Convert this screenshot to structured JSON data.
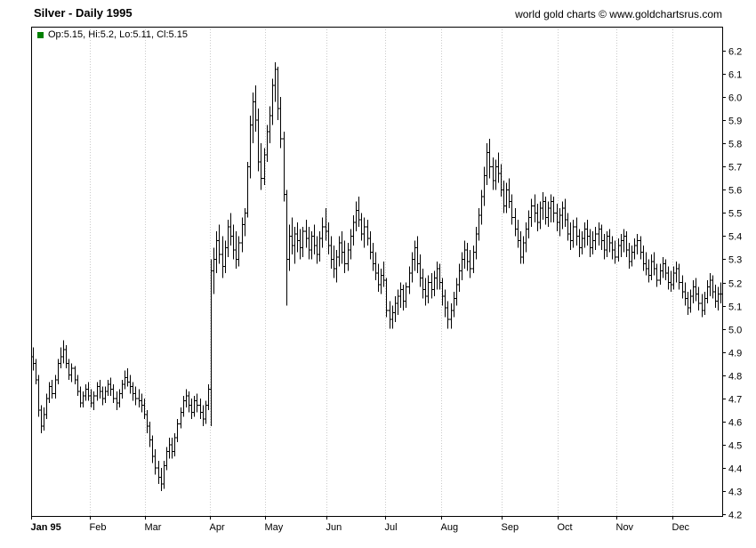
{
  "header": {
    "title": "Silver - Daily 1995",
    "attribution": "world gold charts © www.goldchartsrus.com"
  },
  "legend": {
    "label": "Op:5.15, Hi:5.2, Lo:5.11, Cl:5.15",
    "marker_color": "#008000"
  },
  "chart_data": {
    "type": "ohlc",
    "title": "Silver - Daily 1995",
    "series_name": "Silver daily price (USD/oz)",
    "xlabel": "",
    "ylabel": "",
    "grid": "vertical-dotted-month-lines",
    "legend_position": "top-left",
    "bar_color": "#000000",
    "grid_color": "#c9c9c9",
    "frame_color": "#000000",
    "last_bar": {
      "open": 5.15,
      "high": 5.2,
      "low": 5.11,
      "close": 5.15
    },
    "y_axis": {
      "min": 4.2,
      "max": 6.2,
      "tick_step": 0.1,
      "side": "right",
      "tick_labels": [
        "4.2",
        "4.3",
        "4.4",
        "4.5",
        "4.6",
        "4.7",
        "4.8",
        "4.9",
        "5.0",
        "5.1",
        "5.2",
        "5.3",
        "5.4",
        "5.5",
        "5.6",
        "5.7",
        "5.8",
        "5.9",
        "6.0",
        "6.1",
        "6.2"
      ]
    },
    "x_axis": {
      "months": [
        {
          "label": "Jan 95",
          "start": 0
        },
        {
          "label": "Feb",
          "start": 21
        },
        {
          "label": "Mar",
          "start": 41
        },
        {
          "label": "Apr",
          "start": 64
        },
        {
          "label": "May",
          "start": 84
        },
        {
          "label": "Jun",
          "start": 106
        },
        {
          "label": "Jul",
          "start": 127
        },
        {
          "label": "Aug",
          "start": 147
        },
        {
          "label": "Sep",
          "start": 169
        },
        {
          "label": "Oct",
          "start": 189
        },
        {
          "label": "Nov",
          "start": 210
        },
        {
          "label": "Dec",
          "start": 230
        }
      ]
    },
    "bars": [
      [
        4.88,
        4.92,
        4.82,
        4.85
      ],
      [
        4.85,
        4.87,
        4.76,
        4.78
      ],
      [
        4.78,
        4.8,
        4.62,
        4.65
      ],
      [
        4.65,
        4.67,
        4.55,
        4.58
      ],
      [
        4.58,
        4.66,
        4.56,
        4.63
      ],
      [
        4.63,
        4.72,
        4.61,
        4.7
      ],
      [
        4.7,
        4.77,
        4.68,
        4.75
      ],
      [
        4.75,
        4.78,
        4.7,
        4.72
      ],
      [
        4.72,
        4.8,
        4.7,
        4.78
      ],
      [
        4.78,
        4.87,
        4.76,
        4.85
      ],
      [
        4.85,
        4.92,
        4.83,
        4.88
      ],
      [
        4.88,
        4.95,
        4.85,
        4.91
      ],
      [
        4.91,
        4.93,
        4.83,
        4.85
      ],
      [
        4.85,
        4.87,
        4.78,
        4.8
      ],
      [
        4.8,
        4.85,
        4.77,
        4.83
      ],
      [
        4.83,
        4.84,
        4.76,
        4.78
      ],
      [
        4.78,
        4.8,
        4.71,
        4.73
      ],
      [
        4.73,
        4.75,
        4.66,
        4.68
      ],
      [
        4.68,
        4.73,
        4.66,
        4.71
      ],
      [
        4.71,
        4.76,
        4.69,
        4.74
      ],
      [
        4.74,
        4.77,
        4.69,
        4.71
      ],
      [
        4.71,
        4.74,
        4.66,
        4.68
      ],
      [
        4.68,
        4.73,
        4.65,
        4.71
      ],
      [
        4.71,
        4.77,
        4.69,
        4.75
      ],
      [
        4.75,
        4.78,
        4.7,
        4.73
      ],
      [
        4.73,
        4.75,
        4.67,
        4.7
      ],
      [
        4.7,
        4.75,
        4.68,
        4.73
      ],
      [
        4.73,
        4.78,
        4.71,
        4.76
      ],
      [
        4.76,
        4.79,
        4.71,
        4.74
      ],
      [
        4.74,
        4.76,
        4.68,
        4.7
      ],
      [
        4.7,
        4.73,
        4.65,
        4.68
      ],
      [
        4.68,
        4.74,
        4.66,
        4.72
      ],
      [
        4.72,
        4.78,
        4.7,
        4.76
      ],
      [
        4.76,
        4.82,
        4.74,
        4.79
      ],
      [
        4.79,
        4.83,
        4.75,
        4.77
      ],
      [
        4.77,
        4.8,
        4.72,
        4.75
      ],
      [
        4.75,
        4.77,
        4.69,
        4.72
      ],
      [
        4.72,
        4.75,
        4.67,
        4.7
      ],
      [
        4.7,
        4.74,
        4.66,
        4.69
      ],
      [
        4.69,
        4.72,
        4.64,
        4.67
      ],
      [
        4.67,
        4.7,
        4.61,
        4.63
      ],
      [
        4.63,
        4.65,
        4.55,
        4.58
      ],
      [
        4.58,
        4.6,
        4.49,
        4.52
      ],
      [
        4.52,
        4.54,
        4.42,
        4.45
      ],
      [
        4.45,
        4.48,
        4.37,
        4.4
      ],
      [
        4.4,
        4.43,
        4.33,
        4.36
      ],
      [
        4.36,
        4.4,
        4.3,
        4.33
      ],
      [
        4.33,
        4.43,
        4.31,
        4.41
      ],
      [
        4.41,
        4.49,
        4.39,
        4.47
      ],
      [
        4.47,
        4.53,
        4.44,
        4.5
      ],
      [
        4.5,
        4.53,
        4.44,
        4.47
      ],
      [
        4.47,
        4.55,
        4.45,
        4.53
      ],
      [
        4.53,
        4.61,
        4.51,
        4.59
      ],
      [
        4.59,
        4.66,
        4.57,
        4.64
      ],
      [
        4.64,
        4.71,
        4.62,
        4.69
      ],
      [
        4.69,
        4.74,
        4.66,
        4.71
      ],
      [
        4.71,
        4.73,
        4.64,
        4.67
      ],
      [
        4.67,
        4.7,
        4.61,
        4.64
      ],
      [
        4.64,
        4.71,
        4.62,
        4.69
      ],
      [
        4.69,
        4.72,
        4.64,
        4.67
      ],
      [
        4.67,
        4.7,
        4.61,
        4.64
      ],
      [
        4.64,
        4.67,
        4.58,
        4.61
      ],
      [
        4.61,
        4.69,
        4.59,
        4.67
      ],
      [
        4.67,
        4.76,
        4.65,
        4.74
      ],
      [
        4.74,
        5.3,
        4.58,
        5.25
      ],
      [
        5.25,
        5.35,
        5.15,
        5.3
      ],
      [
        5.3,
        5.42,
        5.24,
        5.38
      ],
      [
        5.38,
        5.45,
        5.28,
        5.32
      ],
      [
        5.32,
        5.4,
        5.22,
        5.27
      ],
      [
        5.27,
        5.38,
        5.24,
        5.35
      ],
      [
        5.35,
        5.47,
        5.31,
        5.44
      ],
      [
        5.44,
        5.5,
        5.36,
        5.4
      ],
      [
        5.4,
        5.45,
        5.3,
        5.34
      ],
      [
        5.34,
        5.42,
        5.26,
        5.3
      ],
      [
        5.3,
        5.4,
        5.27,
        5.37
      ],
      [
        5.37,
        5.48,
        5.33,
        5.45
      ],
      [
        5.45,
        5.52,
        5.4,
        5.5
      ],
      [
        5.5,
        5.72,
        5.48,
        5.7
      ],
      [
        5.7,
        5.92,
        5.65,
        5.88
      ],
      [
        5.88,
        6.02,
        5.8,
        5.98
      ],
      [
        5.98,
        6.05,
        5.85,
        5.9
      ],
      [
        5.9,
        5.95,
        5.68,
        5.72
      ],
      [
        5.72,
        5.8,
        5.6,
        5.65
      ],
      [
        5.65,
        5.78,
        5.62,
        5.75
      ],
      [
        5.75,
        5.88,
        5.72,
        5.85
      ],
      [
        5.85,
        5.96,
        5.8,
        5.92
      ],
      [
        5.92,
        6.08,
        5.88,
        6.05
      ],
      [
        6.05,
        6.15,
        5.98,
        6.12
      ],
      [
        6.12,
        6.13,
        5.9,
        5.95
      ],
      [
        5.95,
        6.0,
        5.78,
        5.82
      ],
      [
        5.82,
        5.85,
        5.55,
        5.58
      ],
      [
        5.58,
        5.6,
        5.1,
        5.3
      ],
      [
        5.3,
        5.45,
        5.25,
        5.4
      ],
      [
        5.4,
        5.48,
        5.32,
        5.36
      ],
      [
        5.36,
        5.44,
        5.28,
        5.41
      ],
      [
        5.41,
        5.46,
        5.33,
        5.38
      ],
      [
        5.38,
        5.43,
        5.3,
        5.35
      ],
      [
        5.35,
        5.44,
        5.31,
        5.42
      ],
      [
        5.42,
        5.47,
        5.35,
        5.39
      ],
      [
        5.39,
        5.44,
        5.3,
        5.34
      ],
      [
        5.34,
        5.42,
        5.3,
        5.4
      ],
      [
        5.4,
        5.45,
        5.32,
        5.36
      ],
      [
        5.36,
        5.4,
        5.28,
        5.32
      ],
      [
        5.32,
        5.42,
        5.29,
        5.39
      ],
      [
        5.39,
        5.48,
        5.35,
        5.44
      ],
      [
        5.44,
        5.52,
        5.38,
        5.42
      ],
      [
        5.42,
        5.46,
        5.32,
        5.36
      ],
      [
        5.36,
        5.4,
        5.26,
        5.3
      ],
      [
        5.3,
        5.36,
        5.22,
        5.26
      ],
      [
        5.26,
        5.34,
        5.2,
        5.31
      ],
      [
        5.31,
        5.4,
        5.27,
        5.37
      ],
      [
        5.37,
        5.42,
        5.28,
        5.33
      ],
      [
        5.33,
        5.38,
        5.24,
        5.28
      ],
      [
        5.28,
        5.37,
        5.25,
        5.34
      ],
      [
        5.34,
        5.43,
        5.3,
        5.4
      ],
      [
        5.4,
        5.49,
        5.36,
        5.46
      ],
      [
        5.46,
        5.55,
        5.42,
        5.51
      ],
      [
        5.51,
        5.57,
        5.44,
        5.47
      ],
      [
        5.47,
        5.5,
        5.38,
        5.41
      ],
      [
        5.41,
        5.48,
        5.35,
        5.44
      ],
      [
        5.44,
        5.47,
        5.36,
        5.39
      ],
      [
        5.39,
        5.42,
        5.3,
        5.33
      ],
      [
        5.33,
        5.37,
        5.25,
        5.28
      ],
      [
        5.28,
        5.33,
        5.21,
        5.24
      ],
      [
        5.24,
        5.28,
        5.16,
        5.19
      ],
      [
        5.19,
        5.26,
        5.15,
        5.23
      ],
      [
        5.23,
        5.29,
        5.18,
        5.21
      ],
      [
        5.21,
        5.22,
        5.05,
        5.08
      ],
      [
        5.08,
        5.12,
        5.0,
        5.04
      ],
      [
        5.04,
        5.1,
        5.0,
        5.07
      ],
      [
        5.07,
        5.14,
        5.03,
        5.11
      ],
      [
        5.11,
        5.17,
        5.06,
        5.14
      ],
      [
        5.14,
        5.2,
        5.09,
        5.17
      ],
      [
        5.17,
        5.19,
        5.08,
        5.12
      ],
      [
        5.12,
        5.2,
        5.09,
        5.18
      ],
      [
        5.18,
        5.27,
        5.15,
        5.24
      ],
      [
        5.24,
        5.33,
        5.2,
        5.3
      ],
      [
        5.3,
        5.38,
        5.25,
        5.35
      ],
      [
        5.35,
        5.4,
        5.24,
        5.28
      ],
      [
        5.28,
        5.32,
        5.18,
        5.22
      ],
      [
        5.22,
        5.26,
        5.13,
        5.17
      ],
      [
        5.17,
        5.22,
        5.1,
        5.14
      ],
      [
        5.14,
        5.23,
        5.11,
        5.2
      ],
      [
        5.2,
        5.24,
        5.13,
        5.17
      ],
      [
        5.17,
        5.25,
        5.14,
        5.22
      ],
      [
        5.22,
        5.29,
        5.17,
        5.26
      ],
      [
        5.26,
        5.28,
        5.17,
        5.2
      ],
      [
        5.2,
        5.22,
        5.1,
        5.14
      ],
      [
        5.14,
        5.17,
        5.05,
        5.09
      ],
      [
        5.09,
        5.12,
        5.0,
        5.04
      ],
      [
        5.04,
        5.11,
        5.0,
        5.08
      ],
      [
        5.08,
        5.16,
        5.05,
        5.13
      ],
      [
        5.13,
        5.22,
        5.1,
        5.19
      ],
      [
        5.19,
        5.28,
        5.16,
        5.25
      ],
      [
        5.25,
        5.33,
        5.21,
        5.3
      ],
      [
        5.3,
        5.38,
        5.26,
        5.34
      ],
      [
        5.34,
        5.37,
        5.25,
        5.29
      ],
      [
        5.29,
        5.34,
        5.22,
        5.26
      ],
      [
        5.26,
        5.36,
        5.24,
        5.33
      ],
      [
        5.33,
        5.44,
        5.3,
        5.41
      ],
      [
        5.41,
        5.52,
        5.38,
        5.49
      ],
      [
        5.49,
        5.6,
        5.45,
        5.57
      ],
      [
        5.57,
        5.7,
        5.53,
        5.66
      ],
      [
        5.66,
        5.8,
        5.62,
        5.76
      ],
      [
        5.76,
        5.82,
        5.65,
        5.7
      ],
      [
        5.7,
        5.74,
        5.6,
        5.64
      ],
      [
        5.64,
        5.73,
        5.6,
        5.7
      ],
      [
        5.7,
        5.76,
        5.63,
        5.67
      ],
      [
        5.67,
        5.71,
        5.57,
        5.6
      ],
      [
        5.6,
        5.64,
        5.5,
        5.53
      ],
      [
        5.53,
        5.63,
        5.5,
        5.6
      ],
      [
        5.6,
        5.65,
        5.52,
        5.55
      ],
      [
        5.55,
        5.58,
        5.45,
        5.48
      ],
      [
        5.48,
        5.52,
        5.4,
        5.43
      ],
      [
        5.43,
        5.47,
        5.35,
        5.38
      ],
      [
        5.38,
        5.42,
        5.28,
        5.31
      ],
      [
        5.31,
        5.4,
        5.28,
        5.37
      ],
      [
        5.37,
        5.46,
        5.33,
        5.43
      ],
      [
        5.43,
        5.51,
        5.39,
        5.48
      ],
      [
        5.48,
        5.56,
        5.44,
        5.53
      ],
      [
        5.53,
        5.58,
        5.46,
        5.5
      ],
      [
        5.5,
        5.54,
        5.42,
        5.46
      ],
      [
        5.46,
        5.55,
        5.43,
        5.52
      ],
      [
        5.52,
        5.59,
        5.47,
        5.55
      ],
      [
        5.55,
        5.57,
        5.45,
        5.48
      ],
      [
        5.48,
        5.55,
        5.44,
        5.52
      ],
      [
        5.52,
        5.58,
        5.46,
        5.55
      ],
      [
        5.55,
        5.57,
        5.46,
        5.5
      ],
      [
        5.5,
        5.54,
        5.42,
        5.46
      ],
      [
        5.46,
        5.52,
        5.4,
        5.49
      ],
      [
        5.49,
        5.55,
        5.43,
        5.52
      ],
      [
        5.52,
        5.56,
        5.44,
        5.47
      ],
      [
        5.47,
        5.5,
        5.38,
        5.41
      ],
      [
        5.41,
        5.46,
        5.34,
        5.38
      ],
      [
        5.38,
        5.47,
        5.35,
        5.44
      ],
      [
        5.44,
        5.48,
        5.36,
        5.4
      ],
      [
        5.4,
        5.43,
        5.31,
        5.35
      ],
      [
        5.35,
        5.42,
        5.32,
        5.39
      ],
      [
        5.39,
        5.46,
        5.35,
        5.43
      ],
      [
        5.43,
        5.47,
        5.36,
        5.4
      ],
      [
        5.4,
        5.43,
        5.31,
        5.35
      ],
      [
        5.35,
        5.42,
        5.32,
        5.38
      ],
      [
        5.38,
        5.44,
        5.34,
        5.41
      ],
      [
        5.41,
        5.46,
        5.36,
        5.43
      ],
      [
        5.43,
        5.45,
        5.34,
        5.38
      ],
      [
        5.38,
        5.41,
        5.3,
        5.34
      ],
      [
        5.34,
        5.42,
        5.31,
        5.4
      ],
      [
        5.4,
        5.43,
        5.33,
        5.37
      ],
      [
        5.37,
        5.4,
        5.3,
        5.34
      ],
      [
        5.34,
        5.38,
        5.28,
        5.31
      ],
      [
        5.31,
        5.39,
        5.29,
        5.36
      ],
      [
        5.36,
        5.41,
        5.31,
        5.38
      ],
      [
        5.38,
        5.43,
        5.33,
        5.4
      ],
      [
        5.4,
        5.42,
        5.31,
        5.34
      ],
      [
        5.34,
        5.37,
        5.26,
        5.29
      ],
      [
        5.29,
        5.36,
        5.27,
        5.33
      ],
      [
        5.33,
        5.39,
        5.3,
        5.36
      ],
      [
        5.36,
        5.41,
        5.32,
        5.38
      ],
      [
        5.38,
        5.4,
        5.3,
        5.33
      ],
      [
        5.33,
        5.36,
        5.25,
        5.28
      ],
      [
        5.28,
        5.33,
        5.23,
        5.26
      ],
      [
        5.26,
        5.3,
        5.2,
        5.23
      ],
      [
        5.23,
        5.32,
        5.21,
        5.29
      ],
      [
        5.29,
        5.33,
        5.23,
        5.26
      ],
      [
        5.26,
        5.28,
        5.18,
        5.21
      ],
      [
        5.21,
        5.28,
        5.19,
        5.25
      ],
      [
        5.25,
        5.31,
        5.22,
        5.28
      ],
      [
        5.28,
        5.3,
        5.21,
        5.24
      ],
      [
        5.24,
        5.27,
        5.17,
        5.2
      ],
      [
        5.2,
        5.25,
        5.16,
        5.19
      ],
      [
        5.19,
        5.27,
        5.17,
        5.24
      ],
      [
        5.24,
        5.29,
        5.2,
        5.26
      ],
      [
        5.26,
        5.28,
        5.17,
        5.2
      ],
      [
        5.2,
        5.23,
        5.13,
        5.16
      ],
      [
        5.16,
        5.2,
        5.1,
        5.13
      ],
      [
        5.13,
        5.16,
        5.06,
        5.09
      ],
      [
        5.09,
        5.17,
        5.07,
        5.14
      ],
      [
        5.14,
        5.21,
        5.11,
        5.18
      ],
      [
        5.18,
        5.22,
        5.12,
        5.15
      ],
      [
        5.15,
        5.18,
        5.08,
        5.11
      ],
      [
        5.11,
        5.15,
        5.05,
        5.08
      ],
      [
        5.08,
        5.16,
        5.06,
        5.13
      ],
      [
        5.13,
        5.21,
        5.11,
        5.18
      ],
      [
        5.18,
        5.24,
        5.14,
        5.21
      ],
      [
        5.21,
        5.23,
        5.13,
        5.16
      ],
      [
        5.16,
        5.19,
        5.09,
        5.12
      ],
      [
        5.12,
        5.18,
        5.08,
        5.15
      ],
      [
        5.15,
        5.2,
        5.11,
        5.15
      ]
    ]
  }
}
